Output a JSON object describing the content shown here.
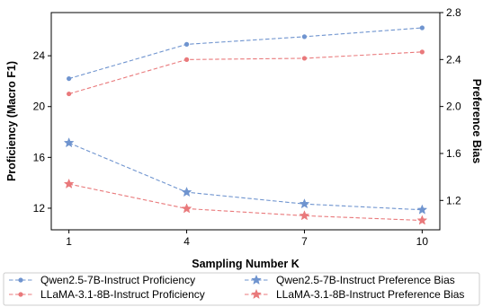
{
  "chart_data": {
    "type": "line",
    "title": "",
    "xlabel": "Sampling Number K",
    "ylabel_left": "Proficiency (Macro F1)",
    "ylabel_right": "Preference Bias",
    "x": [
      1,
      4,
      7,
      10
    ],
    "x_ticks": [
      "1",
      "4",
      "7",
      "10"
    ],
    "xlim": [
      0.55,
      10.45
    ],
    "ylim_left": [
      10.3,
      27.4
    ],
    "ylim_right": [
      0.95,
      2.8
    ],
    "yticks_left": [
      "12",
      "16",
      "20",
      "24"
    ],
    "yticks_right": [
      "1.2",
      "1.6",
      "2.0",
      "2.4",
      "2.8"
    ],
    "grid": false,
    "legend_placement": "bottom",
    "series": [
      {
        "name": "Qwen2.5-7B-Instruct Proficiency",
        "axis": "left",
        "marker": "circle",
        "color": "#6f94cf",
        "values": [
          22.2,
          24.9,
          25.5,
          26.2
        ]
      },
      {
        "name": "LLaMA-3.1-8B-Instruct Proficiency",
        "axis": "left",
        "marker": "circle",
        "color": "#e9797b",
        "values": [
          21.0,
          23.7,
          23.8,
          24.3
        ]
      },
      {
        "name": "Qwen2.5-7B-Instruct Preference Bias",
        "axis": "right",
        "marker": "star",
        "color": "#6f94cf",
        "values": [
          1.69,
          1.27,
          1.17,
          1.12
        ]
      },
      {
        "name": "LLaMA-3.1-8B-Instruct Preference Bias",
        "axis": "right",
        "marker": "star",
        "color": "#e9797b",
        "values": [
          1.34,
          1.13,
          1.07,
          1.03
        ]
      }
    ]
  }
}
